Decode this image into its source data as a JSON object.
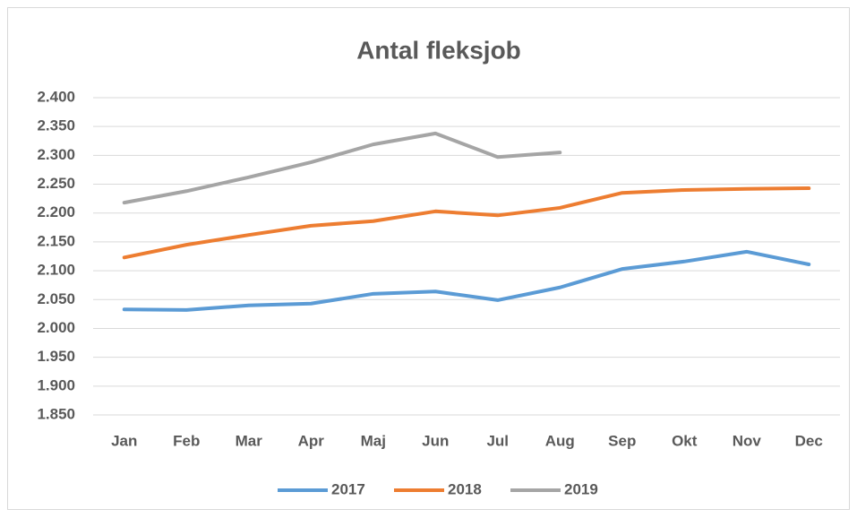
{
  "chart_data": {
    "type": "line",
    "title": "Antal fleksjob",
    "categories": [
      "Jan",
      "Feb",
      "Mar",
      "Apr",
      "Maj",
      "Jun",
      "Jul",
      "Aug",
      "Sep",
      "Okt",
      "Nov",
      "Dec"
    ],
    "series": [
      {
        "name": "2017",
        "color": "#5b9bd5",
        "values": [
          2033,
          2032,
          2040,
          2043,
          2060,
          2064,
          2049,
          2071,
          2103,
          2116,
          2133,
          2111
        ]
      },
      {
        "name": "2018",
        "color": "#ed7d31",
        "values": [
          2123,
          2145,
          2162,
          2178,
          2186,
          2203,
          2196,
          2209,
          2235,
          2240,
          2242,
          2243
        ]
      },
      {
        "name": "2019",
        "color": "#a5a5a5",
        "values": [
          2218,
          2238,
          2262,
          2288,
          2319,
          2338,
          2297,
          2305,
          null,
          null,
          null,
          null
        ]
      }
    ],
    "ylim": [
      1850,
      2400
    ],
    "yticks": [
      {
        "value": 1850,
        "label": "1.850"
      },
      {
        "value": 1900,
        "label": "1.900"
      },
      {
        "value": 1950,
        "label": "1.950"
      },
      {
        "value": 2000,
        "label": "2.000"
      },
      {
        "value": 2050,
        "label": "2.050"
      },
      {
        "value": 2100,
        "label": "2.100"
      },
      {
        "value": 2150,
        "label": "2.150"
      },
      {
        "value": 2200,
        "label": "2.200"
      },
      {
        "value": 2250,
        "label": "2.250"
      },
      {
        "value": 2300,
        "label": "2.300"
      },
      {
        "value": 2350,
        "label": "2.350"
      },
      {
        "value": 2400,
        "label": "2.400"
      }
    ],
    "grid": true,
    "legend": "bottom"
  }
}
